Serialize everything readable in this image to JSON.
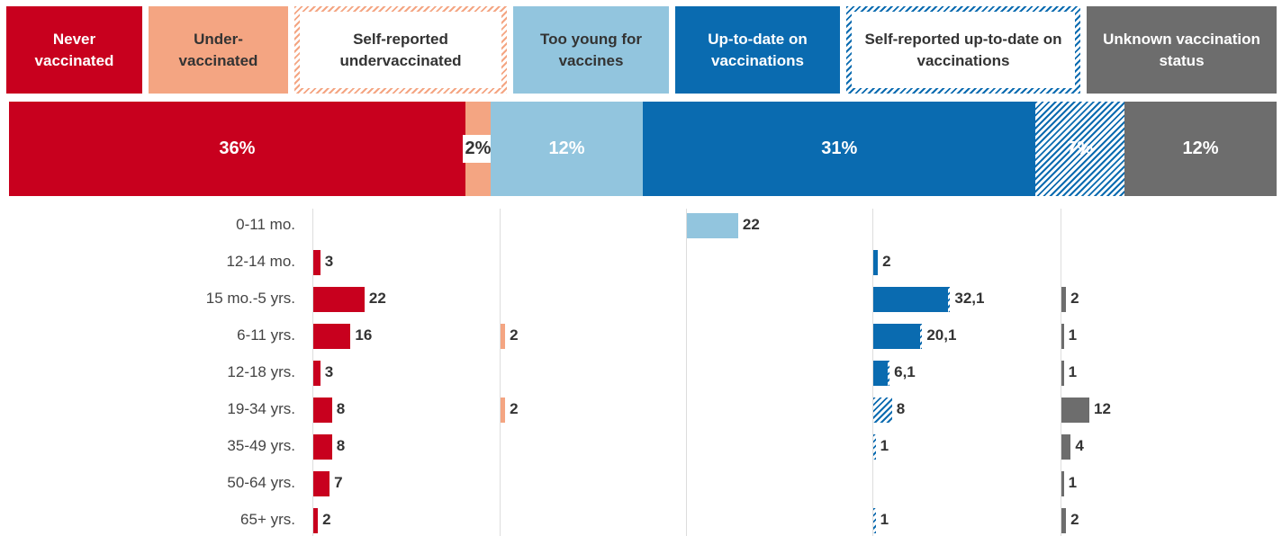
{
  "chart_data": {
    "type": "panel-bar",
    "categories": [
      "0-11 mo.",
      "12-14 mo.",
      "15 mo.-5 yrs.",
      "6-11 yrs.",
      "12-18 yrs.",
      "19-34 yrs.",
      "35-49 yrs.",
      "50-64 yrs.",
      "65+ yrs."
    ],
    "xlim": [
      0,
      80
    ],
    "series": [
      {
        "name": "Never vaccinated",
        "color": "#c8001e",
        "hatched": false,
        "share": 36,
        "share_label": "36%",
        "values": [
          null,
          3,
          22,
          16,
          3,
          8,
          8,
          7,
          2
        ]
      },
      {
        "name": "Under-vaccinated",
        "color": "#f4a582",
        "hatched": false,
        "share": 2,
        "share_label": "2%",
        "values": [
          null,
          null,
          null,
          2,
          null,
          2,
          null,
          null,
          null
        ]
      },
      {
        "name": "Self-reported undervaccinated",
        "color": "#f4a582",
        "hatched": true,
        "share": null,
        "share_label": null,
        "values": [
          null,
          null,
          null,
          null,
          null,
          null,
          null,
          null,
          null
        ]
      },
      {
        "name": "Too young for vaccines",
        "color": "#92c5de",
        "hatched": false,
        "share": 12,
        "share_label": "12%",
        "values": [
          22,
          null,
          null,
          null,
          null,
          null,
          null,
          null,
          null
        ]
      },
      {
        "name": "Up-to-date on vaccinations",
        "color": "#0a6bb0",
        "hatched": false,
        "share": 31,
        "share_label": "31%",
        "values": [
          null,
          2,
          32,
          20,
          6,
          null,
          null,
          null,
          null
        ],
        "value_labels": [
          null,
          "2",
          "32,1",
          "20,1",
          "6,1",
          null,
          null,
          null,
          null
        ]
      },
      {
        "name": "Self-reported up-to-date on vaccinations",
        "color": "#0a6bb0",
        "hatched": true,
        "share": 7,
        "share_label": "7%",
        "values": [
          null,
          null,
          1,
          1,
          1,
          8,
          1,
          null,
          1
        ],
        "value_labels": [
          null,
          null,
          null,
          null,
          null,
          "8",
          "1",
          null,
          "1"
        ]
      },
      {
        "name": "Unknown vaccination status",
        "color": "#6d6d6d",
        "hatched": false,
        "share": 12,
        "share_label": "12%",
        "values": [
          null,
          null,
          2,
          1,
          1,
          12,
          4,
          1,
          2
        ]
      }
    ]
  }
}
